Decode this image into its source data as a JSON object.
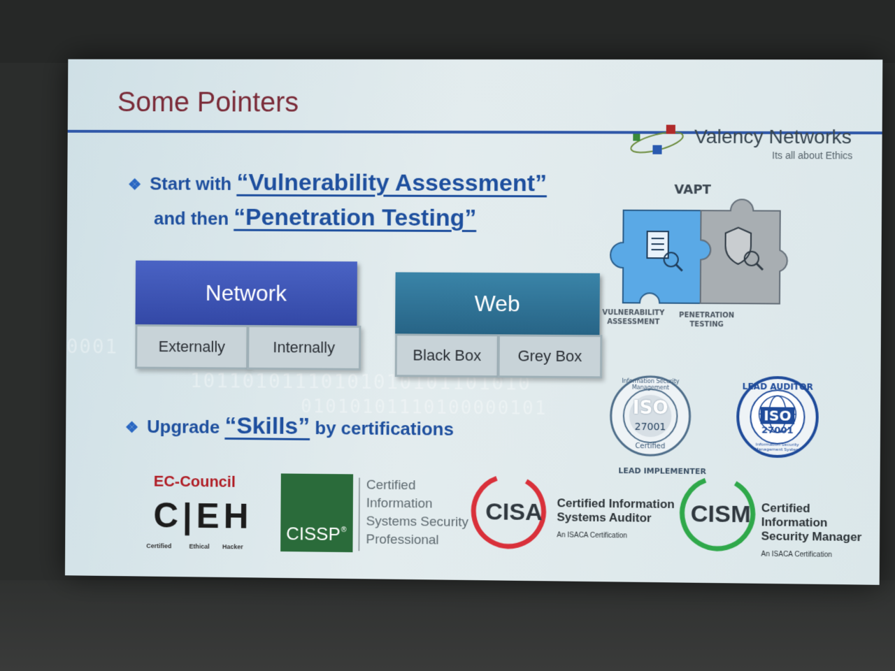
{
  "slide": {
    "title": "Some Pointers",
    "brand": {
      "name": "Valency Networks",
      "tagline": "Its all about Ethics"
    },
    "binary_bg": [
      "0001",
      "10110101110101010101101010",
      "01010101110100000101"
    ],
    "bullet1": {
      "pre": "Start with",
      "highlight1": "“Vulnerability Assessment”",
      "mid": "and then",
      "highlight2": "“Penetration Testing”"
    },
    "network": {
      "title": "Network",
      "sub1": "Externally",
      "sub2": "Internally"
    },
    "web": {
      "title": "Web",
      "sub1": "Black Box",
      "sub2": "Grey Box"
    },
    "vapt": {
      "title": "VAPT",
      "left_label_1": "VULNERABILITY",
      "left_label_2": "ASSESSMENT",
      "right_label_1": "PENETRATION",
      "right_label_2": "TESTING"
    },
    "iso_implementer": {
      "ring_text": "Information Security Management",
      "iso": "ISO",
      "number": "27001",
      "bottom": "Certified",
      "caption": "LEAD IMPLEMENTER"
    },
    "iso_auditor": {
      "ring_text": "LEAD AUDITOR",
      "iso": "ISO",
      "number": "27001",
      "bottom_ring": "Information Security Management System"
    },
    "bullet2": {
      "pre": "Upgrade",
      "highlight": "“Skills”",
      "post": "by certifications"
    },
    "ceh": {
      "org": "EC-Council",
      "letters": "C|EH",
      "sub1": "Certified",
      "sub2": "Ethical",
      "sub3": "Hacker"
    },
    "cissp": {
      "badge": "CISSP",
      "reg": "®",
      "line1": "Certified",
      "line2": "Information",
      "line3": "Systems Security",
      "line4": "Professional"
    },
    "cisa": {
      "badge": "CISA",
      "line1": "Certified Information",
      "line2": "Systems Auditor",
      "line3": "An ISACA Certification"
    },
    "cism": {
      "badge": "CISM",
      "line1": "Certified Information",
      "line2": "Security Manager",
      "line3": "An ISACA Certification"
    },
    "colors": {
      "title": "#7a2b38",
      "accent": "#2f57a8",
      "network": "#3a52b0",
      "web": "#2d6e93",
      "cisa_ring": "#d9303a",
      "cism_ring": "#2fa84a",
      "cissp": "#2a6b3a"
    }
  }
}
